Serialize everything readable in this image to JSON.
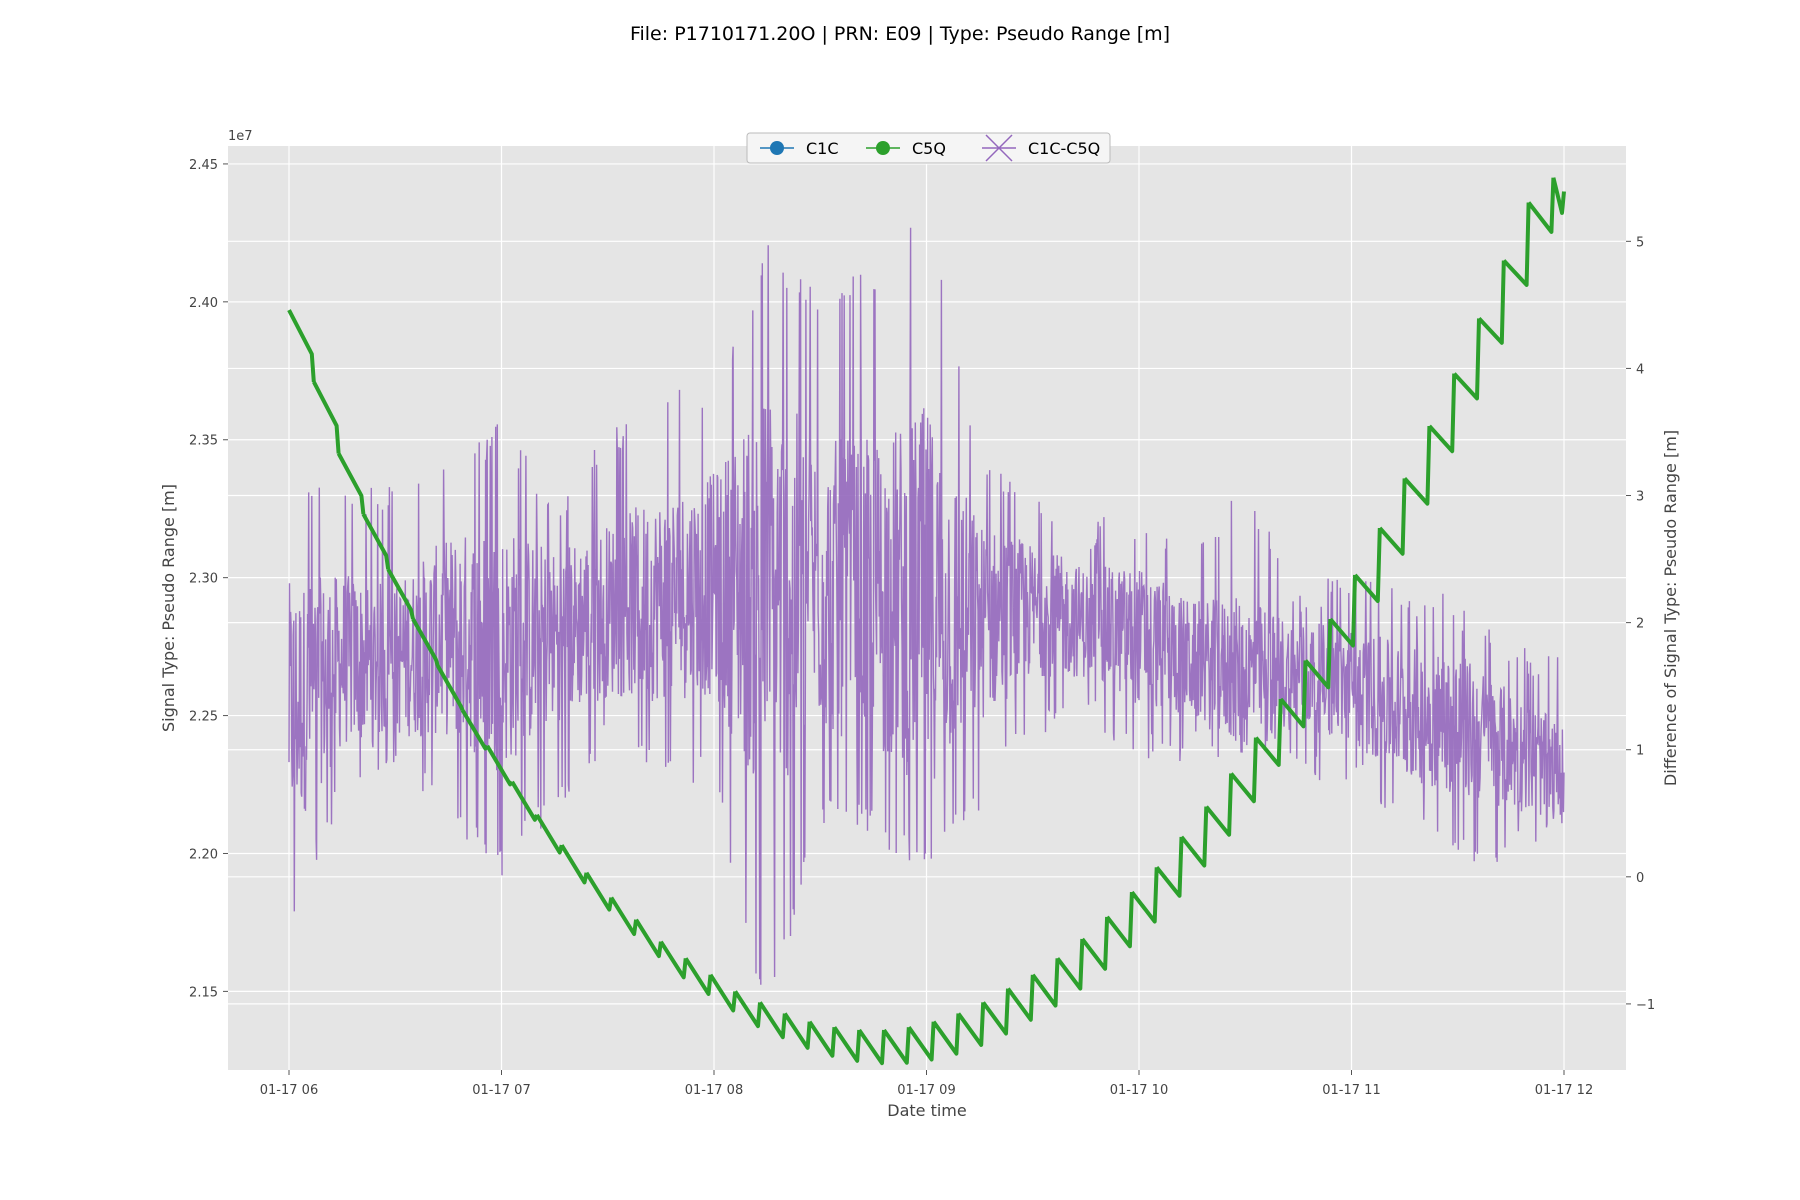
{
  "chart_data": {
    "type": "line",
    "title": "File: P1710171.20O | PRN: E09 | Type: Pseudo Range [m]",
    "xlabel": "Date time",
    "ylabel_left": "Signal Type:  Pseudo Range [m]",
    "ylabel_right": "Difference of Signal Type: Pseudo Range [m]",
    "y_left_offset_label": "1e7",
    "grid": true,
    "legend_position": "top-center",
    "x_ticks": [
      "01-17 06",
      "01-17 07",
      "01-17 08",
      "01-17 09",
      "01-17 10",
      "01-17 11",
      "01-17 12"
    ],
    "y_left_ticks": [
      "2.15",
      "2.20",
      "2.25",
      "2.30",
      "2.35",
      "2.40",
      "2.45"
    ],
    "y_right_ticks": [
      "−1",
      "0",
      "1",
      "2",
      "3",
      "4",
      "5"
    ],
    "ylim_left": [
      2.1215,
      2.4565
    ],
    "ylim_right": [
      -1.52,
      5.75
    ],
    "x_range_hours": [
      "01-17 06",
      "01-17 12"
    ],
    "series": [
      {
        "name": "C1C",
        "axis": "left",
        "color": "#1f77b4",
        "marker": "circle",
        "values": []
      },
      {
        "name": "C5Q",
        "axis": "left",
        "color": "#2ca02c",
        "marker": "circle",
        "x": [
          "01-17 06:00",
          "01-17 06:07",
          "01-17 06:14",
          "01-17 06:21",
          "01-17 06:28",
          "01-17 06:35",
          "01-17 06:42",
          "01-17 06:49",
          "01-17 06:56",
          "01-17 07:03",
          "01-17 07:10",
          "01-17 07:17",
          "01-17 07:24",
          "01-17 07:31",
          "01-17 07:38",
          "01-17 07:45",
          "01-17 07:52",
          "01-17 07:59",
          "01-17 08:06",
          "01-17 08:13",
          "01-17 08:20",
          "01-17 08:27",
          "01-17 08:34",
          "01-17 08:41",
          "01-17 08:48",
          "01-17 08:55",
          "01-17 09:02",
          "01-17 09:09",
          "01-17 09:16",
          "01-17 09:23",
          "01-17 09:30",
          "01-17 09:37",
          "01-17 09:44",
          "01-17 09:51",
          "01-17 09:58",
          "01-17 10:05",
          "01-17 10:12",
          "01-17 10:19",
          "01-17 10:26",
          "01-17 10:33",
          "01-17 10:40",
          "01-17 10:47",
          "01-17 10:54",
          "01-17 11:01",
          "01-17 11:08",
          "01-17 11:15",
          "01-17 11:22",
          "01-17 11:29",
          "01-17 11:36",
          "01-17 11:43",
          "01-17 11:50",
          "01-17 11:57",
          "01-17 12:00"
        ],
        "values": [
          2.397,
          2.371,
          2.345,
          2.323,
          2.303,
          2.285,
          2.268,
          2.252,
          2.239,
          2.226,
          2.214,
          2.203,
          2.193,
          2.184,
          2.176,
          2.168,
          2.162,
          2.156,
          2.15,
          2.146,
          2.142,
          2.139,
          2.137,
          2.136,
          2.136,
          2.137,
          2.139,
          2.142,
          2.146,
          2.151,
          2.156,
          2.162,
          2.169,
          2.177,
          2.186,
          2.195,
          2.206,
          2.217,
          2.229,
          2.242,
          2.256,
          2.27,
          2.285,
          2.301,
          2.318,
          2.336,
          2.355,
          2.374,
          2.394,
          2.415,
          2.436,
          2.445,
          2.44
        ]
      },
      {
        "name": "C1C-C5Q",
        "axis": "right",
        "color": "#9467bd",
        "marker": "x",
        "x": [
          "01-17 06:00",
          "01-17 06:15",
          "01-17 06:30",
          "01-17 06:45",
          "01-17 07:00",
          "01-17 07:15",
          "01-17 07:30",
          "01-17 07:45",
          "01-17 08:00",
          "01-17 08:15",
          "01-17 08:30",
          "01-17 08:45",
          "01-17 09:00",
          "01-17 09:15",
          "01-17 09:30",
          "01-17 09:45",
          "01-17 10:00",
          "01-17 10:15",
          "01-17 10:30",
          "01-17 10:45",
          "01-17 11:00",
          "01-17 11:15",
          "01-17 11:30",
          "01-17 11:45",
          "01-17 12:00"
        ],
        "values": [
          1.3,
          1.7,
          1.7,
          1.9,
          1.8,
          1.9,
          2.1,
          2.2,
          2.3,
          2.2,
          2.3,
          2.2,
          2.2,
          2.0,
          2.1,
          2.0,
          1.9,
          1.7,
          1.6,
          1.6,
          1.5,
          1.3,
          1.2,
          1.0,
          0.8
        ],
        "envelope_low": [
          -0.5,
          0.6,
          0.9,
          0.4,
          0.0,
          0.5,
          1.0,
          0.8,
          0.7,
          -1.2,
          0.4,
          0.3,
          0.0,
          0.5,
          1.1,
          1.2,
          0.9,
          0.9,
          0.9,
          0.8,
          0.7,
          0.4,
          0.1,
          0.1,
          0.4
        ],
        "envelope_high": [
          3.2,
          3.1,
          3.1,
          3.3,
          3.6,
          3.0,
          3.5,
          3.8,
          3.9,
          5.0,
          4.6,
          4.8,
          5.5,
          3.4,
          3.0,
          2.8,
          2.9,
          2.6,
          3.1,
          2.3,
          2.4,
          2.3,
          2.2,
          1.8,
          1.8
        ]
      }
    ]
  }
}
